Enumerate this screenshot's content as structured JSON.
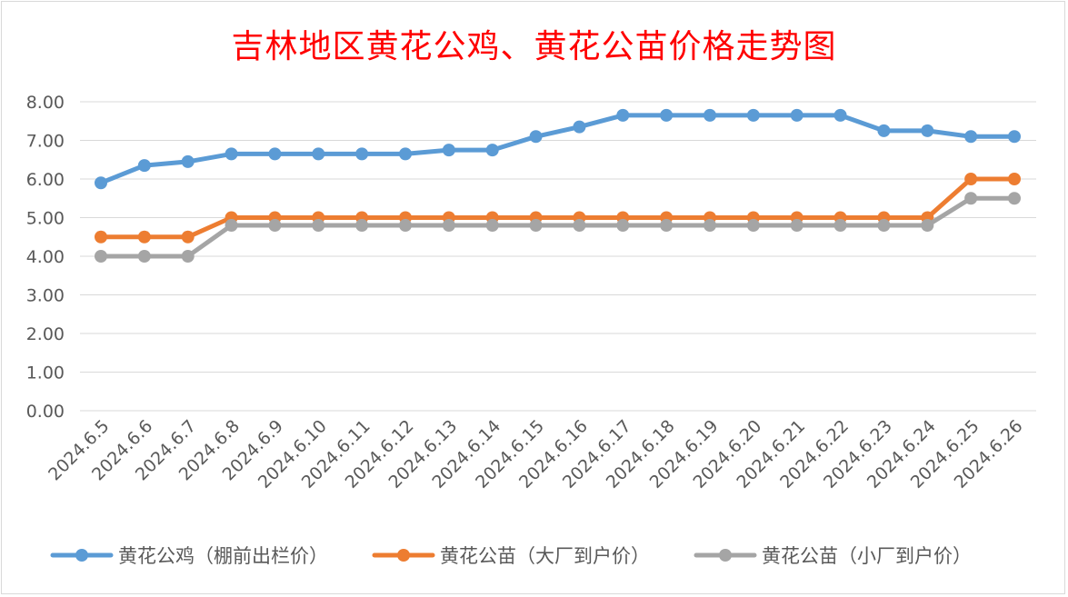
{
  "chart_data": {
    "type": "line",
    "title": "吉林地区黄花公鸡、黄花公苗价格走势图",
    "xlabel": "",
    "ylabel": "",
    "ylim": [
      0,
      8
    ],
    "y_ticks": [
      "0.00",
      "1.00",
      "2.00",
      "3.00",
      "4.00",
      "5.00",
      "6.00",
      "7.00",
      "8.00"
    ],
    "grid": true,
    "legend_position": "bottom",
    "categories": [
      "2024.6.5",
      "2024.6.6",
      "2024.6.7",
      "2024.6.8",
      "2024.6.9",
      "2024.6.10",
      "2024.6.11",
      "2024.6.12",
      "2024.6.13",
      "2024.6.14",
      "2024.6.15",
      "2024.6.16",
      "2024.6.17",
      "2024.6.18",
      "2024.6.19",
      "2024.6.20",
      "2024.6.21",
      "2024.6.22",
      "2024.6.23",
      "2024.6.24",
      "2024.6.25",
      "2024.6.26"
    ],
    "series": [
      {
        "name": "黄花公鸡（棚前出栏价）",
        "color": "#5b9bd5",
        "values": [
          5.9,
          6.35,
          6.45,
          6.65,
          6.65,
          6.65,
          6.65,
          6.65,
          6.75,
          6.75,
          7.1,
          7.35,
          7.65,
          7.65,
          7.65,
          7.65,
          7.65,
          7.65,
          7.25,
          7.25,
          7.1,
          7.1
        ]
      },
      {
        "name": "黄花公苗（大厂到户价）",
        "color": "#ed7d31",
        "values": [
          4.5,
          4.5,
          4.5,
          5.0,
          5.0,
          5.0,
          5.0,
          5.0,
          5.0,
          5.0,
          5.0,
          5.0,
          5.0,
          5.0,
          5.0,
          5.0,
          5.0,
          5.0,
          5.0,
          5.0,
          6.0,
          6.0
        ]
      },
      {
        "name": "黄花公苗（小厂到户价）",
        "color": "#a5a5a5",
        "values": [
          4.0,
          4.0,
          4.0,
          4.8,
          4.8,
          4.8,
          4.8,
          4.8,
          4.8,
          4.8,
          4.8,
          4.8,
          4.8,
          4.8,
          4.8,
          4.8,
          4.8,
          4.8,
          4.8,
          4.8,
          5.5,
          5.5
        ]
      }
    ]
  }
}
